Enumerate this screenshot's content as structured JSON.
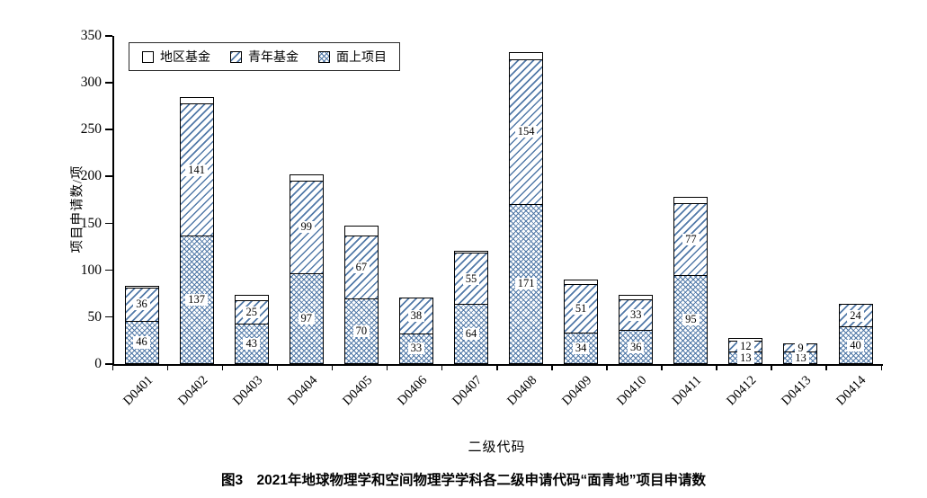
{
  "chart_data": {
    "type": "bar",
    "stacked": true,
    "title": "",
    "xlabel": "二级代码",
    "ylabel": "项目申请数/项",
    "ylim": [
      0,
      350
    ],
    "yticks": [
      0,
      50,
      100,
      150,
      200,
      250,
      300,
      350
    ],
    "grid": false,
    "legend_position": "top-left-inside",
    "categories": [
      "D0401",
      "D0402",
      "D0403",
      "D0404",
      "D0405",
      "D0406",
      "D0407",
      "D0408",
      "D0409",
      "D0410",
      "D0411",
      "D0412",
      "D0413",
      "D0414"
    ],
    "series": [
      {
        "name": "面上项目",
        "pattern": "dense",
        "labels_shown": true,
        "values": [
          46,
          137,
          43,
          97,
          70,
          33,
          64,
          171,
          34,
          36,
          95,
          13,
          13,
          40
        ]
      },
      {
        "name": "青年基金",
        "pattern": "diag",
        "labels_shown": true,
        "values": [
          36,
          141,
          25,
          99,
          67,
          38,
          55,
          154,
          51,
          33,
          77,
          12,
          9,
          24
        ]
      },
      {
        "name": "地区基金",
        "pattern": "plain",
        "labels_shown": false,
        "values": [
          1,
          7,
          6,
          6,
          11,
          0,
          1,
          8,
          5,
          5,
          6,
          3,
          0,
          0
        ]
      }
    ],
    "legend_items": [
      {
        "label": "地区基金",
        "pattern": "plain"
      },
      {
        "label": "青年基金",
        "pattern": "diag"
      },
      {
        "label": "面上项目",
        "pattern": "dense"
      }
    ],
    "hatch_color": "#4872a3",
    "caption": "图3　2021年地球物理学和空间物理学学科各二级申请代码“面青地”项目申请数"
  }
}
